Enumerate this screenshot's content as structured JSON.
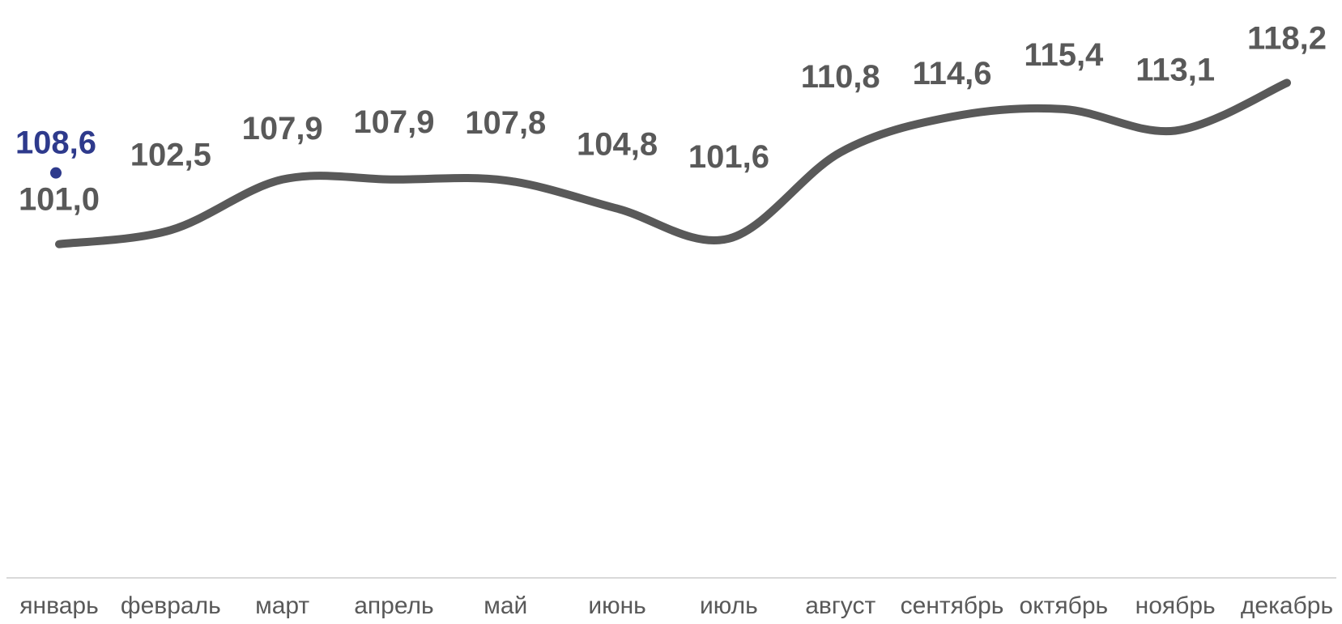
{
  "chart_data": {
    "type": "line",
    "categories": [
      "январь",
      "февраль",
      "март",
      "апрель",
      "май",
      "июнь",
      "июль",
      "август",
      "сентябрь",
      "октябрь",
      "ноябрь",
      "декабрь"
    ],
    "series": [
      {
        "values": [
          101.0,
          102.5,
          107.9,
          107.9,
          107.8,
          104.8,
          101.6,
          110.8,
          114.6,
          115.4,
          113.1,
          118.2
        ],
        "labels": [
          "101,0",
          "102,5",
          "107,9",
          "107,9",
          "107,8",
          "104,8",
          "101,6",
          "110,8",
          "114,6",
          "115,4",
          "113,1",
          "118,2"
        ],
        "color": "#595959",
        "style": "smooth-line"
      },
      {
        "values": [
          108.6,
          null,
          null,
          null,
          null,
          null,
          null,
          null,
          null,
          null,
          null,
          null
        ],
        "labels": [
          "108,6"
        ],
        "color": "#2E3A8C",
        "style": "marker"
      }
    ],
    "ylim": [
      92,
      121
    ],
    "grid": false,
    "legend": "none"
  }
}
